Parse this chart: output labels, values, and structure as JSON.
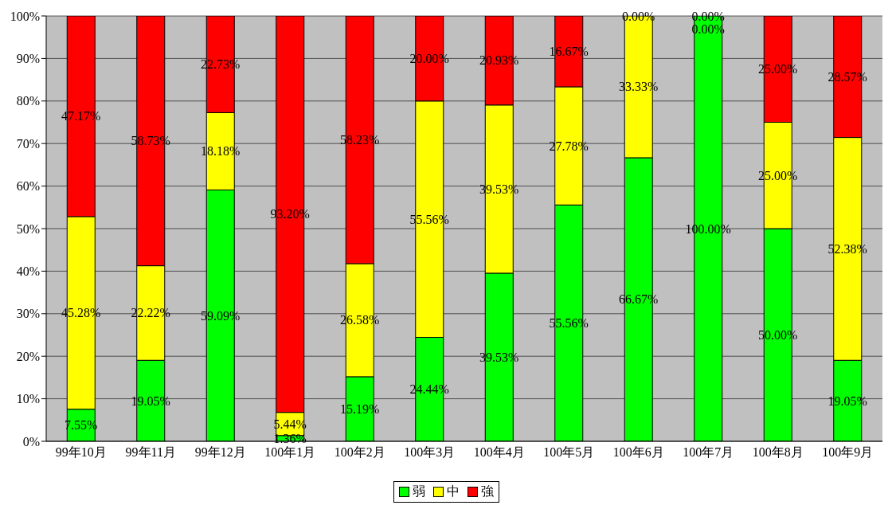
{
  "chart_data": {
    "type": "bar",
    "stacked": true,
    "categories": [
      "99年10月",
      "99年11月",
      "99年12月",
      "100年1月",
      "100年2月",
      "100年3月",
      "100年4月",
      "100年5月",
      "100年6月",
      "100年7月",
      "100年8月",
      "100年9月"
    ],
    "series": [
      {
        "name": "弱",
        "color": "#00ff00",
        "values": [
          7.55,
          19.05,
          59.09,
          1.36,
          15.19,
          24.44,
          39.53,
          55.56,
          66.67,
          100.0,
          50.0,
          19.05
        ],
        "value_labels": [
          "7.55%",
          "19.05%",
          "59.09%",
          "1.36%",
          "15.19%",
          "24.44%",
          "39.53%",
          "55.56%",
          "66.67%",
          "100.00%",
          "50.00%",
          "19.05%"
        ]
      },
      {
        "name": "中",
        "color": "#ffff00",
        "values": [
          45.28,
          22.22,
          18.18,
          5.44,
          26.58,
          55.56,
          39.53,
          27.78,
          33.33,
          0.0,
          25.0,
          52.38
        ],
        "value_labels": [
          "45.28%",
          "22.22%",
          "18.18%",
          "5.44%",
          "26.58%",
          "55.56%",
          "39.53%",
          "27.78%",
          "33.33%",
          "0.00%",
          "25.00%",
          "52.38%"
        ]
      },
      {
        "name": "強",
        "color": "#ff0000",
        "values": [
          47.17,
          58.73,
          22.73,
          93.2,
          58.23,
          20.0,
          20.93,
          16.67,
          0.0,
          0.0,
          25.0,
          28.57
        ],
        "value_labels": [
          "47.17%",
          "58.73%",
          "22.73%",
          "93.20%",
          "58.23%",
          "20.00%",
          "20.93%",
          "16.67%",
          "0.00%",
          "0.00%",
          "25.00%",
          "28.57%"
        ]
      }
    ],
    "ylim": [
      0,
      100
    ],
    "yticks": [
      {
        "value": 0,
        "label": "0%"
      },
      {
        "value": 10,
        "label": "10%"
      },
      {
        "value": 20,
        "label": "20%"
      },
      {
        "value": 30,
        "label": "30%"
      },
      {
        "value": 40,
        "label": "40%"
      },
      {
        "value": 50,
        "label": "50%"
      },
      {
        "value": 60,
        "label": "60%"
      },
      {
        "value": 70,
        "label": "70%"
      },
      {
        "value": 80,
        "label": "80%"
      },
      {
        "value": 90,
        "label": "90%"
      },
      {
        "value": 100,
        "label": "100%"
      }
    ],
    "grid": "y",
    "legend": "bottom"
  }
}
